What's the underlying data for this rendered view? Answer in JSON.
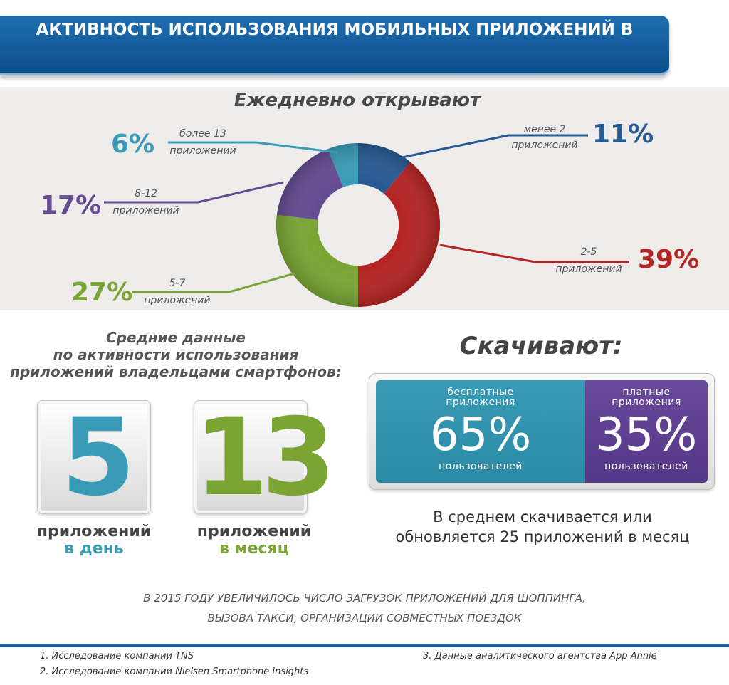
{
  "header": {
    "title": "АКТИВНОСТЬ ИСПОЛЬЗОВАНИЯ МОБИЛЬНЫХ ПРИЛОЖЕНИЙ В РОССИИ"
  },
  "colors": {
    "blue_dark": "#275a93",
    "red": "#b52524",
    "green": "#7aa534",
    "purple": "#654b92",
    "teal": "#3a9bb6",
    "banner": "#155f9f"
  },
  "chart_data": {
    "type": "pie",
    "title": "Ежедневно открывают",
    "donut": true,
    "slices": [
      {
        "pct_label": "11%",
        "line1": "менее 2",
        "line2": "приложений",
        "value": 11,
        "color": "#275a93"
      },
      {
        "pct_label": "39%",
        "line1": "2-5",
        "line2": "приложений",
        "value": 39,
        "color": "#b52524"
      },
      {
        "pct_label": "27%",
        "line1": "5-7",
        "line2": "приложений",
        "value": 27,
        "color": "#7aa534"
      },
      {
        "pct_label": "17%",
        "line1": "8-12",
        "line2": "приложений",
        "value": 17,
        "color": "#654b92"
      },
      {
        "pct_label": "6%",
        "line1": "более 13",
        "line2": "приложений",
        "value": 6,
        "color": "#3a9bb6"
      }
    ]
  },
  "averages": {
    "title_lines": [
      "Средние данные",
      "по активности использования",
      "приложений владельцами смартфонов:"
    ],
    "daily": {
      "number": "5",
      "unit": "приложений",
      "period": "в день",
      "color": "#3a9bb6"
    },
    "monthly": {
      "number": "13",
      "unit": "приложений",
      "period": "в месяц",
      "color": "#7aa534"
    }
  },
  "downloads": {
    "title": "Скачивают:",
    "free": {
      "cap1": "бесплатные",
      "cap2": "приложения",
      "pct": "65%",
      "users": "пользователей"
    },
    "paid": {
      "cap1": "платные",
      "cap2": "приложения",
      "pct": "35%",
      "users": "пользователей"
    },
    "note_lines": [
      "В среднем скачивается или",
      "обновляется 25 приложений в месяц"
    ]
  },
  "trend_lines": [
    "В 2015 ГОДУ УВЕЛИЧИЛОСЬ ЧИСЛО ЗАГРУЗОК ПРИЛОЖЕНИЙ ДЛЯ ШОППИНГА,",
    "ВЫЗОВА ТАКСИ, ОРГАНИЗАЦИИ СОВМЕСТНЫХ ПОЕЗДОК"
  ],
  "sources": [
    "1. Исследование компании TNS",
    "2. Исследование компании Nielsen Smartphone Insights",
    "3. Данные аналитического агентства App Annie"
  ]
}
